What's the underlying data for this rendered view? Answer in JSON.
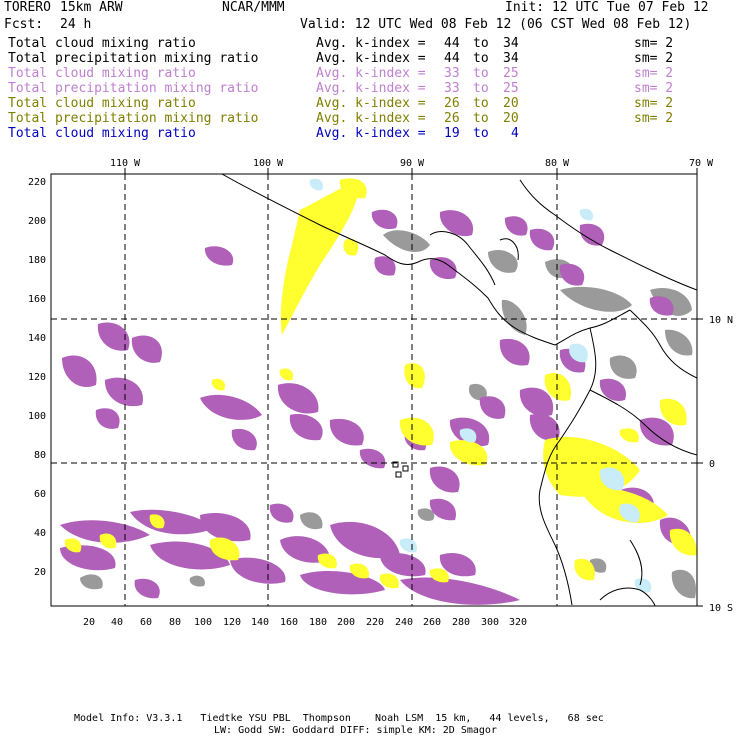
{
  "header": {
    "model": "TORERO",
    "resolution": "15km ARW",
    "org": "NCAR/MMM",
    "init": "Init: 12 UTC Tue 07 Feb 12",
    "fcst_label": "Fcst:",
    "fcst_value": "24 h",
    "valid": "Valid: 12 UTC Wed 08 Feb 12 (06 CST Wed 08 Feb 12)"
  },
  "legend": [
    {
      "field": "Total cloud mixing ratio",
      "avg": "Avg. k-index =",
      "from": "44",
      "to": "to",
      "end": "34",
      "sm": "sm= 2",
      "color": "#000000"
    },
    {
      "field": "Total precipitation mixing ratio",
      "avg": "Avg. k-index =",
      "from": "44",
      "to": "to",
      "end": "34",
      "sm": "sm= 2",
      "color": "#000000"
    },
    {
      "field": "Total cloud mixing ratio",
      "avg": "Avg. k-index =",
      "from": "33",
      "to": "to",
      "end": "25",
      "sm": "sm= 2",
      "color": "#c080d0"
    },
    {
      "field": "Total precipitation mixing ratio",
      "avg": "Avg. k-index =",
      "from": "33",
      "to": "to",
      "end": "25",
      "sm": "sm= 2",
      "color": "#c080d0"
    },
    {
      "field": "Total cloud mixing ratio",
      "avg": "Avg. k-index =",
      "from": "26",
      "to": "to",
      "end": "20",
      "sm": "sm= 2",
      "color": "#808000"
    },
    {
      "field": "Total precipitation mixing ratio",
      "avg": "Avg. k-index =",
      "from": "26",
      "to": "to",
      "end": "20",
      "sm": "sm= 2",
      "color": "#808000"
    },
    {
      "field": "Total cloud mixing ratio",
      "avg": "Avg. k-index =",
      "from": "19",
      "to": "to",
      "end": "4",
      "sm": "",
      "color": "#0000c0"
    }
  ],
  "map": {
    "lon_labels": [
      "110 W",
      "100 W",
      "90 W",
      "80 W",
      "70 W"
    ],
    "lat_labels": [
      "10 N",
      "0",
      "10 S"
    ],
    "grid_x_labels": [
      "20",
      "40",
      "60",
      "80",
      "100",
      "120",
      "140",
      "160",
      "180",
      "200",
      "220",
      "240",
      "260",
      "280",
      "300",
      "320"
    ],
    "grid_y_labels": [
      "220",
      "200",
      "180",
      "160",
      "140",
      "120",
      "100",
      "80",
      "60",
      "40",
      "20"
    ],
    "colors": {
      "gray": "#9a9a9a",
      "purple": "#b060b8",
      "yellow": "#ffff30",
      "lightblue": "#c8ecf8",
      "coast": "#000000"
    }
  },
  "footer": {
    "line1": "Model Info: V3.3.1   Tiedtke YSU PBL  Thompson    Noah LSM  15 km,   44 levels,   68 sec",
    "line2": "LW: Godd SW: Goddard DIFF: simple KM: 2D Smagor"
  }
}
